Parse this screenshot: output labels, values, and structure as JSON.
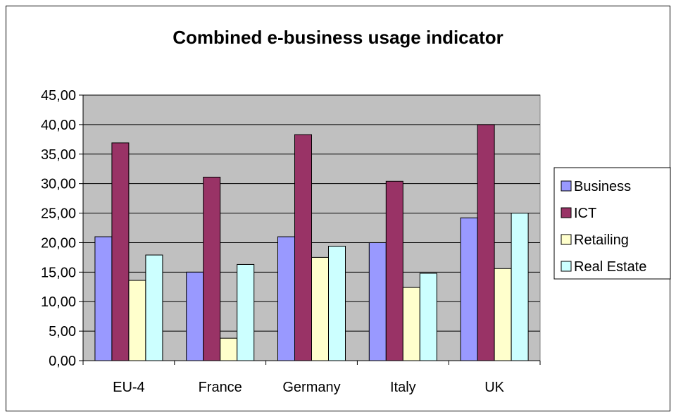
{
  "chart_data": {
    "type": "bar",
    "title": "Combined e-business usage indicator",
    "xlabel": "",
    "ylabel": "",
    "categories": [
      "EU-4",
      "France",
      "Germany",
      "Italy",
      "UK"
    ],
    "series": [
      {
        "name": "Business",
        "color": "#9999FF",
        "values": [
          21.0,
          15.0,
          21.0,
          20.0,
          24.2
        ]
      },
      {
        "name": "ICT",
        "color": "#993366",
        "values": [
          36.9,
          31.1,
          38.3,
          30.4,
          40.0
        ]
      },
      {
        "name": "Retailing",
        "color": "#FFFFCC",
        "values": [
          13.6,
          3.8,
          17.5,
          12.4,
          15.6
        ]
      },
      {
        "name": "Real Estate",
        "color": "#CCFFFF",
        "values": [
          17.9,
          16.3,
          19.4,
          14.8,
          25.0
        ]
      }
    ],
    "ylim": [
      0,
      45
    ],
    "yticks": [
      "0,00",
      "5,00",
      "10,00",
      "15,00",
      "20,00",
      "25,00",
      "30,00",
      "35,00",
      "40,00",
      "45,00"
    ],
    "ytick_values": [
      0,
      5,
      10,
      15,
      20,
      25,
      30,
      35,
      40,
      45
    ],
    "grid": true,
    "plot_background": "#C0C0C0",
    "legend_position": "right"
  }
}
